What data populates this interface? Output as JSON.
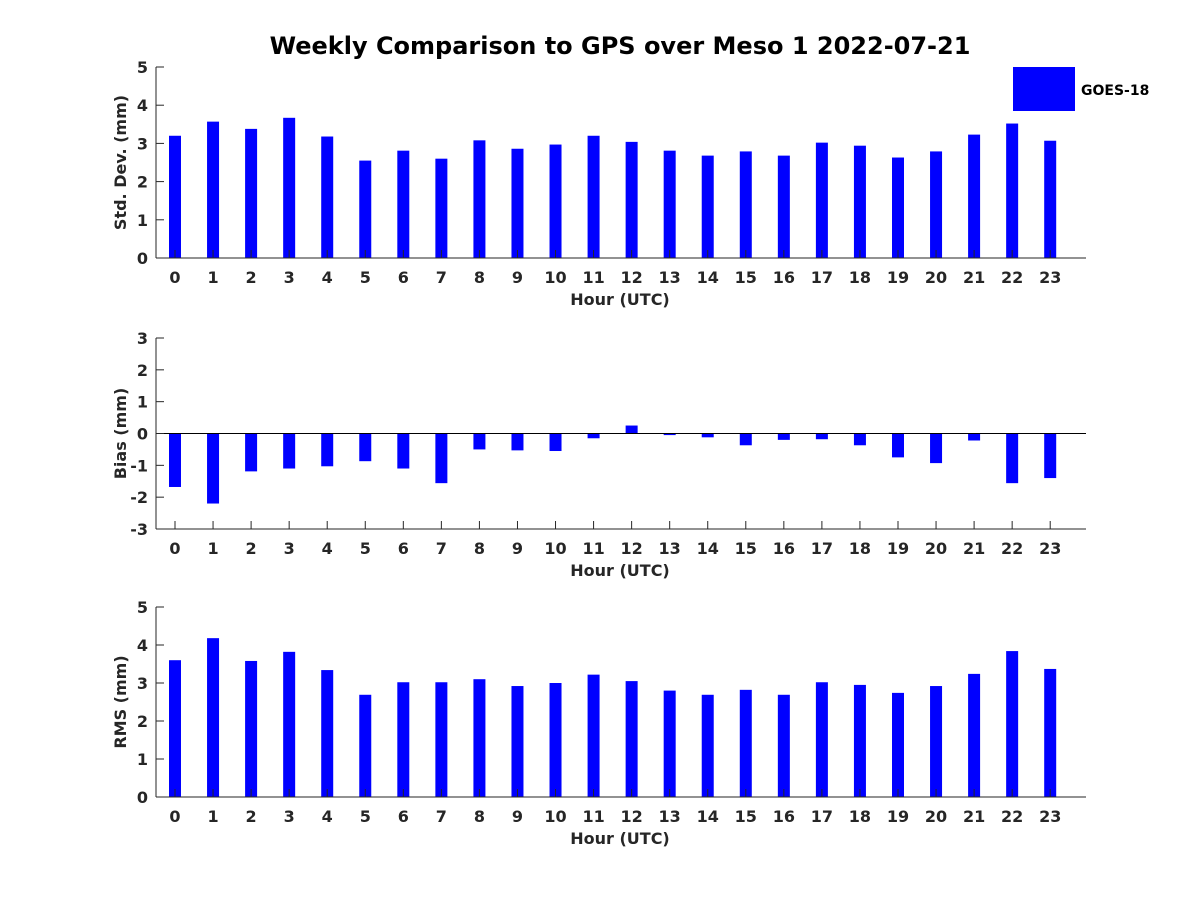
{
  "title": "Weekly Comparison to GPS over Meso 1 2022-07-21",
  "legend": {
    "label": "GOES-18",
    "color": "#0000ff"
  },
  "chart_data": [
    {
      "type": "bar",
      "xlabel": "Hour (UTC)",
      "ylabel": "Std. Dev. (mm)",
      "ylim": [
        0,
        5
      ],
      "yticks": [
        0,
        1,
        2,
        3,
        4,
        5
      ],
      "categories": [
        "0",
        "1",
        "2",
        "3",
        "4",
        "5",
        "6",
        "7",
        "8",
        "9",
        "10",
        "11",
        "12",
        "13",
        "14",
        "15",
        "16",
        "17",
        "18",
        "19",
        "20",
        "21",
        "22",
        "23"
      ],
      "series": [
        {
          "name": "GOES-18",
          "color": "#0000ff",
          "values": [
            3.2,
            3.57,
            3.38,
            3.67,
            3.18,
            2.55,
            2.81,
            2.6,
            3.08,
            2.86,
            2.97,
            3.2,
            3.04,
            2.81,
            2.68,
            2.79,
            2.68,
            3.02,
            2.94,
            2.63,
            2.79,
            3.23,
            3.52,
            3.07
          ]
        }
      ],
      "grid": false
    },
    {
      "type": "bar",
      "xlabel": "Hour (UTC)",
      "ylabel": "Bias (mm)",
      "ylim": [
        -3,
        3
      ],
      "yticks": [
        -3,
        -2,
        -1,
        0,
        1,
        2,
        3
      ],
      "categories": [
        "0",
        "1",
        "2",
        "3",
        "4",
        "5",
        "6",
        "7",
        "8",
        "9",
        "10",
        "11",
        "12",
        "13",
        "14",
        "15",
        "16",
        "17",
        "18",
        "19",
        "20",
        "21",
        "22",
        "23"
      ],
      "series": [
        {
          "name": "GOES-18",
          "color": "#0000ff",
          "values": [
            -1.68,
            -2.2,
            -1.19,
            -1.1,
            -1.03,
            -0.87,
            -1.1,
            -1.56,
            -0.5,
            -0.53,
            -0.55,
            -0.15,
            0.25,
            -0.05,
            -0.12,
            -0.37,
            -0.2,
            -0.18,
            -0.37,
            -0.75,
            -0.93,
            -0.22,
            -1.56,
            -1.4
          ]
        }
      ],
      "zero_line": true,
      "grid": false
    },
    {
      "type": "bar",
      "xlabel": "Hour (UTC)",
      "ylabel": "RMS (mm)",
      "ylim": [
        0,
        5
      ],
      "yticks": [
        0,
        1,
        2,
        3,
        4,
        5
      ],
      "categories": [
        "0",
        "1",
        "2",
        "3",
        "4",
        "5",
        "6",
        "7",
        "8",
        "9",
        "10",
        "11",
        "12",
        "13",
        "14",
        "15",
        "16",
        "17",
        "18",
        "19",
        "20",
        "21",
        "22",
        "23"
      ],
      "series": [
        {
          "name": "GOES-18",
          "color": "#0000ff",
          "values": [
            3.6,
            4.18,
            3.58,
            3.82,
            3.34,
            2.69,
            3.02,
            3.02,
            3.1,
            2.92,
            3.0,
            3.22,
            3.05,
            2.8,
            2.69,
            2.82,
            2.69,
            3.02,
            2.95,
            2.74,
            2.92,
            3.24,
            3.84,
            3.37
          ]
        }
      ],
      "grid": false
    }
  ]
}
